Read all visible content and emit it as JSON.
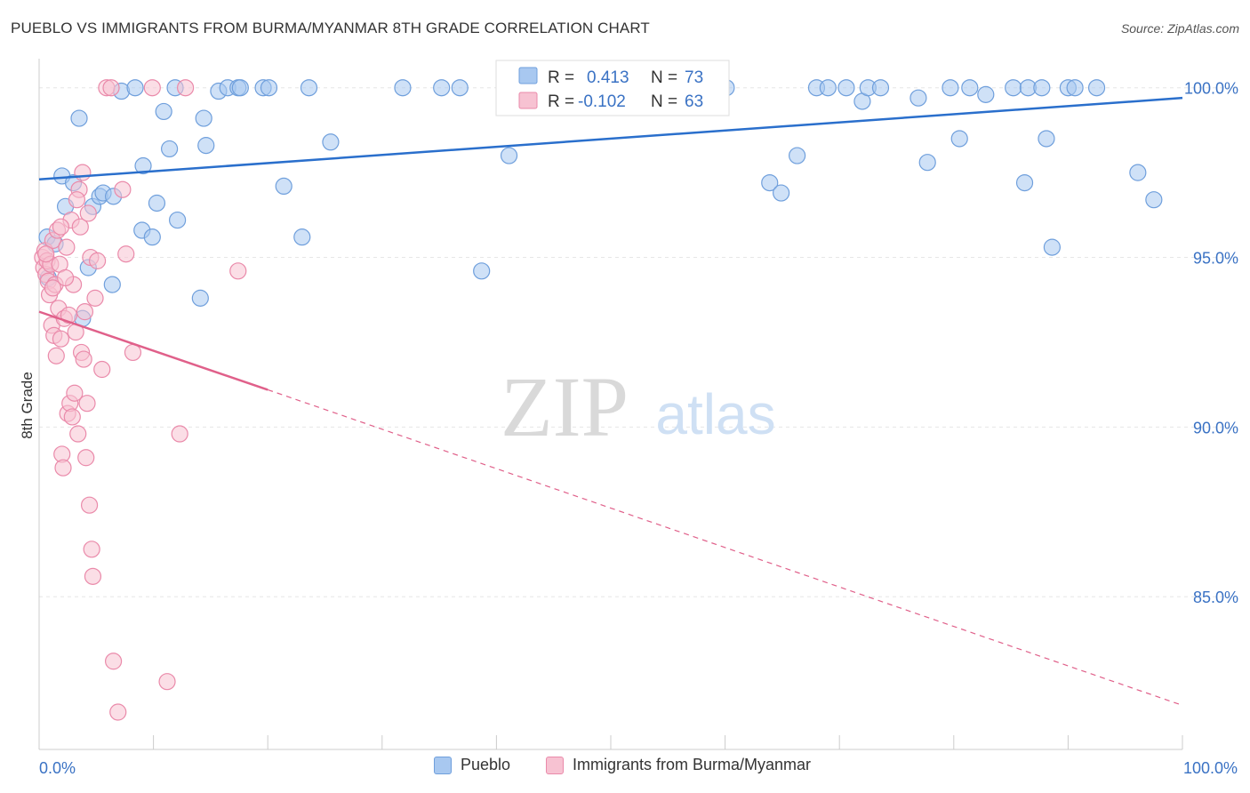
{
  "title": "PUEBLO VS IMMIGRANTS FROM BURMA/MYANMAR 8TH GRADE CORRELATION CHART",
  "source": "Source: ZipAtlas.com",
  "watermark": {
    "zip": "ZIP",
    "atlas": "atlas"
  },
  "colors": {
    "blue_fill": "#a8c8f0",
    "blue_stroke": "#6f9fdc",
    "blue_line": "#2a6fcc",
    "pink_fill": "#f7c2d2",
    "pink_stroke": "#ea8aaa",
    "pink_line": "#e0608a",
    "axis_label": "#3a72c4",
    "grid": "#e6e6e6"
  },
  "legend_top": {
    "rows": [
      {
        "r_label": "R =",
        "r_value": "0.413",
        "n_label": "N =",
        "n_value": "73"
      },
      {
        "r_label": "R =",
        "r_value": "-0.102",
        "n_label": "N =",
        "n_value": "63"
      }
    ]
  },
  "legend_bottom": {
    "items": [
      {
        "label": "Pueblo"
      },
      {
        "label": "Immigrants from Burma/Myanmar"
      }
    ]
  },
  "chart_data": {
    "type": "scatter",
    "title": "PUEBLO VS IMMIGRANTS FROM BURMA/MYANMAR 8TH GRADE CORRELATION CHART",
    "xlabel": "",
    "ylabel": "8th Grade",
    "xlim": [
      0,
      100
    ],
    "ylim": [
      80.5,
      100.7
    ],
    "x_tick_labels": [
      {
        "value": 0,
        "label": "0.0%"
      },
      {
        "value": 100,
        "label": "100.0%"
      }
    ],
    "y_tick_labels": [
      {
        "value": 100,
        "label": "100.0%"
      },
      {
        "value": 95,
        "label": "95.0%"
      },
      {
        "value": 90,
        "label": "90.0%"
      },
      {
        "value": 85,
        "label": "85.0%"
      }
    ],
    "x_minor_ticks": [
      0,
      10,
      20,
      30,
      40,
      50,
      60,
      70,
      80,
      90,
      100
    ],
    "series": [
      {
        "name": "Pueblo",
        "R": 0.413,
        "N": 73,
        "trend": {
          "x0": 0,
          "y0": 97.3,
          "x1": 100,
          "y1": 99.7
        },
        "points": [
          [
            0.7,
            95.6
          ],
          [
            0.8,
            94.4
          ],
          [
            1.4,
            95.4
          ],
          [
            2.0,
            97.4
          ],
          [
            2.3,
            96.5
          ],
          [
            3.0,
            97.2
          ],
          [
            3.5,
            99.1
          ],
          [
            3.8,
            93.2
          ],
          [
            4.3,
            94.7
          ],
          [
            4.7,
            96.5
          ],
          [
            5.3,
            96.8
          ],
          [
            5.6,
            96.9
          ],
          [
            6.4,
            94.2
          ],
          [
            6.5,
            96.8
          ],
          [
            7.2,
            99.9
          ],
          [
            8.4,
            100.0
          ],
          [
            9.1,
            97.7
          ],
          [
            9.0,
            95.8
          ],
          [
            9.9,
            95.6
          ],
          [
            10.3,
            96.6
          ],
          [
            10.9,
            99.3
          ],
          [
            11.4,
            98.2
          ],
          [
            11.9,
            100.0
          ],
          [
            12.1,
            96.1
          ],
          [
            14.1,
            93.8
          ],
          [
            14.4,
            99.1
          ],
          [
            14.6,
            98.3
          ],
          [
            15.7,
            99.9
          ],
          [
            16.5,
            100.0
          ],
          [
            17.4,
            100.0
          ],
          [
            17.6,
            100.0
          ],
          [
            19.6,
            100.0
          ],
          [
            20.1,
            100.0
          ],
          [
            21.4,
            97.1
          ],
          [
            23.0,
            95.6
          ],
          [
            23.6,
            100.0
          ],
          [
            25.5,
            98.4
          ],
          [
            31.8,
            100.0
          ],
          [
            35.2,
            100.0
          ],
          [
            36.8,
            100.0
          ],
          [
            38.7,
            94.6
          ],
          [
            41.1,
            98.0
          ],
          [
            42.7,
            100.0
          ],
          [
            45.6,
            100.0
          ],
          [
            48.4,
            100.0
          ],
          [
            50.8,
            100.0
          ],
          [
            60.1,
            100.0
          ],
          [
            63.9,
            97.2
          ],
          [
            64.9,
            96.9
          ],
          [
            66.3,
            98.0
          ],
          [
            68.0,
            100.0
          ],
          [
            69.0,
            100.0
          ],
          [
            70.6,
            100.0
          ],
          [
            72.0,
            99.6
          ],
          [
            72.5,
            100.0
          ],
          [
            73.6,
            100.0
          ],
          [
            76.9,
            99.7
          ],
          [
            77.7,
            97.8
          ],
          [
            79.7,
            100.0
          ],
          [
            80.5,
            98.5
          ],
          [
            81.4,
            100.0
          ],
          [
            82.8,
            99.8
          ],
          [
            85.2,
            100.0
          ],
          [
            86.2,
            97.2
          ],
          [
            86.5,
            100.0
          ],
          [
            87.7,
            100.0
          ],
          [
            88.1,
            98.5
          ],
          [
            88.6,
            95.3
          ],
          [
            90.0,
            100.0
          ],
          [
            90.6,
            100.0
          ],
          [
            92.5,
            100.0
          ],
          [
            96.1,
            97.5
          ],
          [
            97.5,
            96.7
          ]
        ]
      },
      {
        "name": "Immigrants from Burma/Myanmar",
        "R": -0.102,
        "N": 63,
        "trend_solid": {
          "x0": 0,
          "y0": 93.4,
          "x1": 20,
          "y1": 91.1
        },
        "trend_dashed": {
          "x0": 20,
          "y0": 91.1,
          "x1": 100,
          "y1": 81.8
        },
        "points": [
          [
            0.3,
            95.0
          ],
          [
            0.4,
            94.7
          ],
          [
            0.5,
            95.2
          ],
          [
            0.6,
            94.5
          ],
          [
            0.7,
            94.9
          ],
          [
            0.8,
            94.3
          ],
          [
            0.9,
            93.9
          ],
          [
            1.0,
            94.8
          ],
          [
            1.1,
            93.0
          ],
          [
            1.2,
            95.5
          ],
          [
            1.3,
            92.7
          ],
          [
            1.4,
            94.2
          ],
          [
            1.5,
            92.1
          ],
          [
            1.6,
            95.8
          ],
          [
            1.7,
            93.5
          ],
          [
            1.8,
            94.8
          ],
          [
            1.9,
            92.6
          ],
          [
            2.0,
            89.2
          ],
          [
            2.1,
            88.8
          ],
          [
            2.2,
            93.2
          ],
          [
            2.4,
            95.3
          ],
          [
            2.5,
            90.4
          ],
          [
            2.6,
            93.3
          ],
          [
            2.7,
            90.7
          ],
          [
            2.8,
            96.1
          ],
          [
            2.9,
            90.3
          ],
          [
            3.0,
            94.2
          ],
          [
            3.1,
            91.0
          ],
          [
            3.2,
            92.8
          ],
          [
            3.4,
            89.8
          ],
          [
            3.5,
            97.0
          ],
          [
            3.6,
            95.9
          ],
          [
            3.7,
            92.2
          ],
          [
            3.8,
            97.5
          ],
          [
            3.9,
            92.0
          ],
          [
            4.0,
            93.4
          ],
          [
            4.1,
            89.1
          ],
          [
            4.2,
            90.7
          ],
          [
            4.3,
            96.3
          ],
          [
            4.4,
            87.7
          ],
          [
            4.5,
            95.0
          ],
          [
            4.6,
            86.4
          ],
          [
            4.7,
            85.6
          ],
          [
            5.1,
            94.9
          ],
          [
            5.5,
            91.7
          ],
          [
            5.9,
            100.0
          ],
          [
            6.3,
            100.0
          ],
          [
            6.5,
            83.1
          ],
          [
            6.9,
            81.6
          ],
          [
            7.3,
            97.0
          ],
          [
            7.6,
            95.1
          ],
          [
            8.2,
            92.2
          ],
          [
            9.9,
            100.0
          ],
          [
            11.2,
            82.5
          ],
          [
            12.3,
            89.8
          ],
          [
            12.8,
            100.0
          ],
          [
            17.4,
            94.6
          ],
          [
            1.2,
            94.1
          ],
          [
            0.6,
            95.1
          ],
          [
            2.3,
            94.4
          ],
          [
            3.3,
            96.7
          ],
          [
            4.9,
            93.8
          ],
          [
            1.9,
            95.9
          ]
        ]
      }
    ]
  }
}
